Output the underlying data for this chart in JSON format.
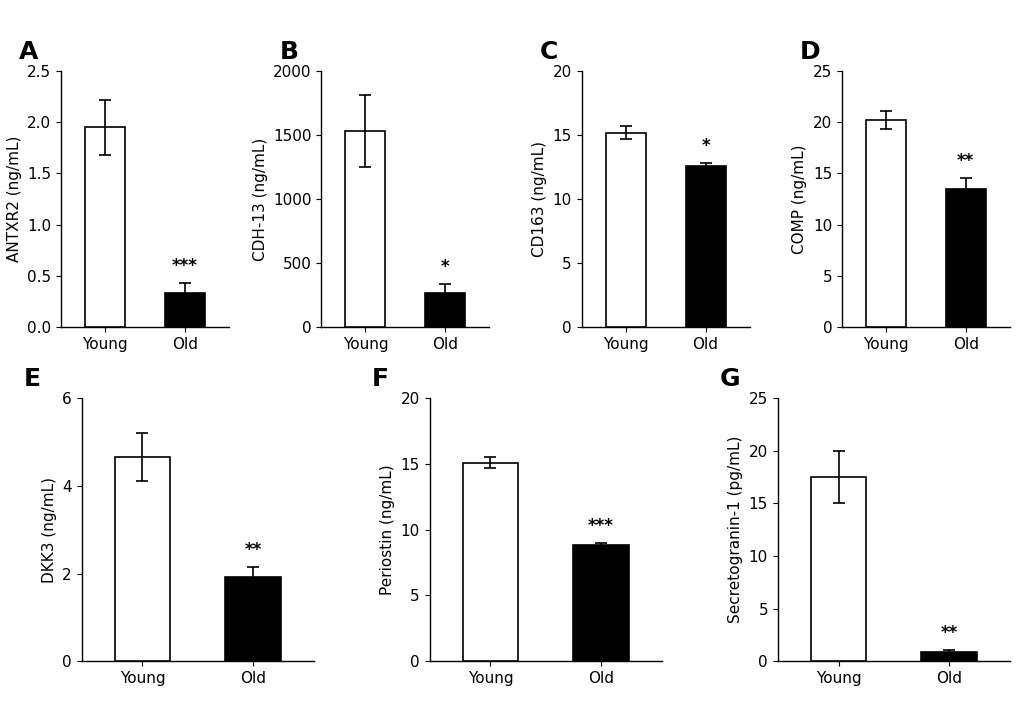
{
  "panels": [
    {
      "label": "A",
      "ylabel": "ANTXR2 (ng/mL)",
      "ylim": [
        0,
        2.5
      ],
      "yticks": [
        0,
        0.5,
        1.0,
        1.5,
        2.0,
        2.5
      ],
      "young_mean": 1.95,
      "young_sem": 0.27,
      "old_mean": 0.33,
      "old_sem": 0.1,
      "significance": "***"
    },
    {
      "label": "B",
      "ylabel": "CDH-13 (ng/mL)",
      "ylim": [
        0,
        2000
      ],
      "yticks": [
        0,
        500,
        1000,
        1500,
        2000
      ],
      "young_mean": 1530,
      "young_sem": 280,
      "old_mean": 270,
      "old_sem": 70,
      "significance": "*"
    },
    {
      "label": "C",
      "ylabel": "CD163 (ng/mL)",
      "ylim": [
        0,
        20
      ],
      "yticks": [
        0,
        5,
        10,
        15,
        20
      ],
      "young_mean": 15.2,
      "young_sem": 0.5,
      "old_mean": 12.6,
      "old_sem": 0.25,
      "significance": "*"
    },
    {
      "label": "D",
      "ylabel": "COMP (ng/mL)",
      "ylim": [
        0,
        25
      ],
      "yticks": [
        0,
        5,
        10,
        15,
        20,
        25
      ],
      "young_mean": 20.2,
      "young_sem": 0.9,
      "old_mean": 13.5,
      "old_sem": 1.1,
      "significance": "**"
    },
    {
      "label": "E",
      "ylabel": "DKK3 (ng/mL)",
      "ylim": [
        0,
        6
      ],
      "yticks": [
        0,
        2,
        4,
        6
      ],
      "young_mean": 4.65,
      "young_sem": 0.55,
      "old_mean": 1.93,
      "old_sem": 0.22,
      "significance": "**"
    },
    {
      "label": "F",
      "ylabel": "Periostin (ng/mL)",
      "ylim": [
        0,
        20
      ],
      "yticks": [
        0,
        5,
        10,
        15,
        20
      ],
      "young_mean": 15.1,
      "young_sem": 0.4,
      "old_mean": 8.8,
      "old_sem": 0.2,
      "significance": "***"
    },
    {
      "label": "G",
      "ylabel": "Secretogranin-1 (pg/mL)",
      "ylim": [
        0,
        25
      ],
      "yticks": [
        0,
        5,
        10,
        15,
        20,
        25
      ],
      "young_mean": 17.5,
      "young_sem": 2.5,
      "old_mean": 0.85,
      "old_sem": 0.25,
      "significance": "**"
    }
  ],
  "bar_colors": [
    "white",
    "black"
  ],
  "edge_color": "black",
  "bar_width": 0.5,
  "x_positions": [
    0,
    1
  ],
  "x_ticklabels": [
    "Young",
    "Old"
  ],
  "background_color": "white",
  "capsize": 4,
  "bar_linewidth": 1.2,
  "tick_fontsize": 11,
  "ylabel_fontsize": 11,
  "sig_fontsize": 12,
  "panel_label_fontsize": 18
}
